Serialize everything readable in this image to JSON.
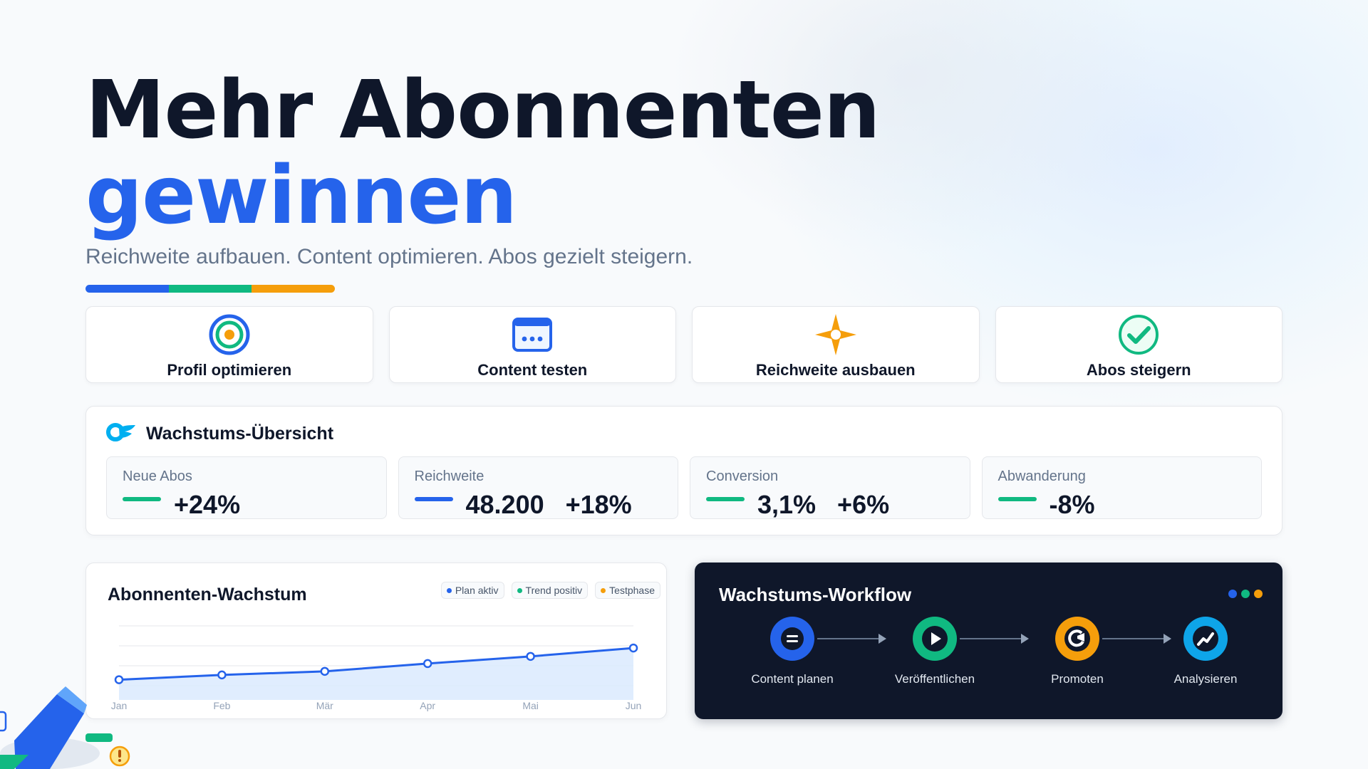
{
  "hero": {
    "title_line1": "Mehr Abonnenten",
    "title_line2": "gewinnen",
    "subtitle": "Reichweite aufbauen. Content optimieren. Abos gezielt steigern.",
    "accent_colors": [
      "#2563eb",
      "#10b981",
      "#f59e0b"
    ]
  },
  "features": [
    {
      "label": "Profil optimieren",
      "icon": "target-icon"
    },
    {
      "label": "Content testen",
      "icon": "browser-window-icon"
    },
    {
      "label": "Reichweite ausbauen",
      "icon": "compass-star-icon"
    },
    {
      "label": "Abos steigern",
      "icon": "check-circle-icon"
    }
  ],
  "overview": {
    "title": "Wachstums-Übersicht",
    "icon": "onlyfans-logo-icon",
    "metrics": [
      {
        "label": "Neue Abos",
        "value": "+24%",
        "color": "#10b981"
      },
      {
        "label": "Reichweite",
        "value": "48.200   +18%",
        "color": "#2563eb"
      },
      {
        "label": "Conversion",
        "value": "3,1%   +6%",
        "color": "#10b981"
      },
      {
        "label": "Abwanderung",
        "value": "-8%",
        "color": "#10b981"
      }
    ]
  },
  "growth_chart": {
    "title": "Abonnenten-Wachstum",
    "tags": [
      {
        "label": "Plan aktiv",
        "color": "#2563eb"
      },
      {
        "label": "Trend positiv",
        "color": "#10b981"
      },
      {
        "label": "Testphase",
        "color": "#f59e0b"
      }
    ]
  },
  "chart_data": {
    "type": "area",
    "title": "Abonnenten-Wachstum",
    "categories": [
      "Jan",
      "Feb",
      "Mär",
      "Apr",
      "Mai",
      "Jun"
    ],
    "series": [
      {
        "values": [
          10,
          18,
          24,
          37,
          49,
          63
        ]
      }
    ],
    "ylim": [
      0,
      100
    ],
    "grid": true,
    "color": "#2563eb"
  },
  "workflow": {
    "title": "Wachstums-Workflow",
    "dots": [
      "#2563eb",
      "#10b981",
      "#f59e0b"
    ],
    "steps": [
      {
        "label": "Content planen",
        "icon": "document-lines-icon",
        "color": "#2563eb"
      },
      {
        "label": "Veröffentlichen",
        "icon": "play-icon",
        "color": "#10b981"
      },
      {
        "label": "Promoten",
        "icon": "megaphone-icon",
        "color": "#f59e0b"
      },
      {
        "label": "Analysieren",
        "icon": "trend-chart-icon",
        "color": "#0ea5e9"
      }
    ]
  }
}
